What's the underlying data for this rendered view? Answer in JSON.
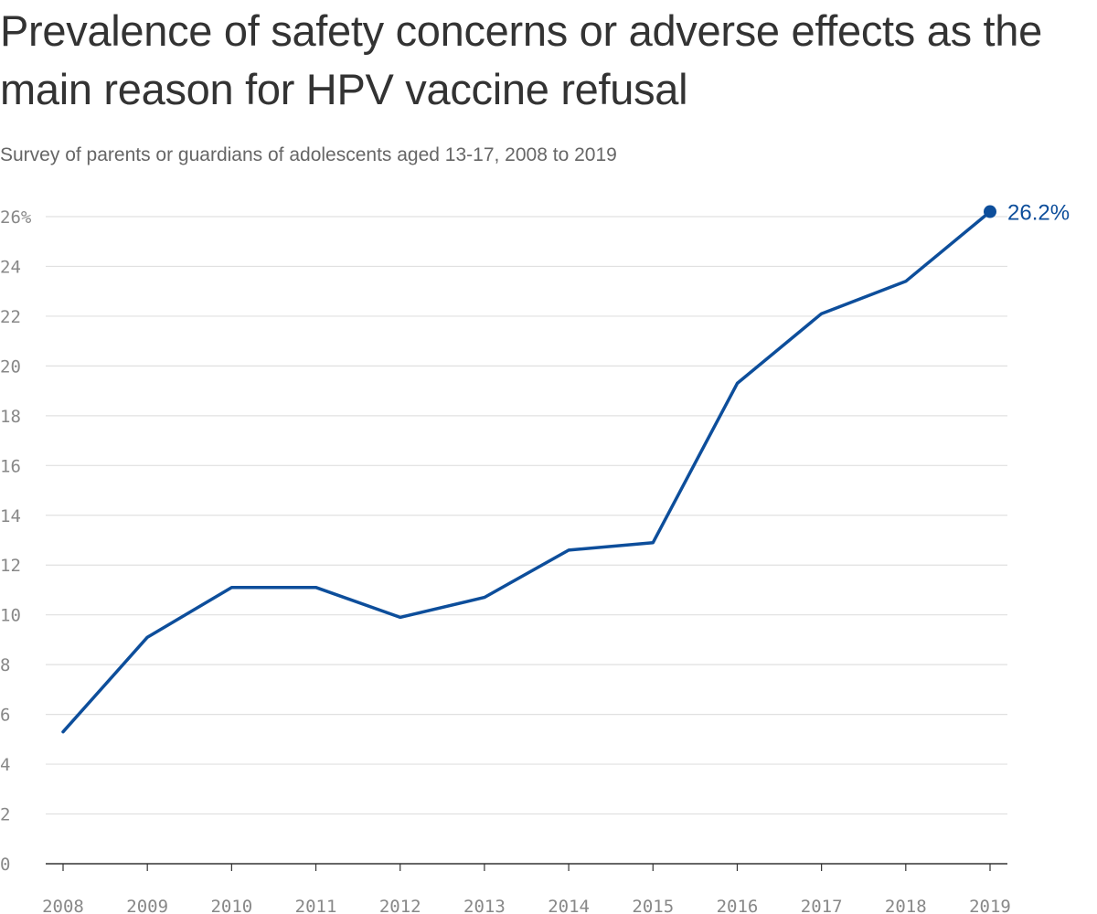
{
  "title": "Prevalence of safety concerns or adverse effects as the main reason for HPV vaccine refusal",
  "subtitle": "Survey of parents or guardians of adolescents aged 13-17, 2008 to 2019",
  "colors": {
    "line": "#0d4e9b",
    "grid": "#e0e0e0",
    "axis": "#333333",
    "tick_text": "#888888"
  },
  "chart_data": {
    "type": "line",
    "title": "Prevalence of safety concerns or adverse effects as the main reason for HPV vaccine refusal",
    "subtitle": "Survey of parents or guardians of adolescents aged 13-17, 2008 to 2019",
    "xlabel": "",
    "ylabel": "",
    "x": [
      "2008",
      "2009",
      "2010",
      "2011",
      "2012",
      "2013",
      "2014",
      "2015",
      "2016",
      "2017",
      "2018",
      "2019"
    ],
    "series": [
      {
        "values": [
          5.3,
          9.1,
          11.1,
          11.1,
          9.9,
          10.7,
          12.6,
          12.9,
          19.3,
          22.1,
          23.4,
          26.2
        ]
      }
    ],
    "ylim": [
      0,
      26
    ],
    "yticks": [
      0,
      2,
      4,
      6,
      8,
      10,
      12,
      14,
      16,
      18,
      20,
      22,
      24,
      26
    ],
    "ytick_labels": [
      "0",
      "2",
      "4",
      "6",
      "8",
      "10",
      "12",
      "14",
      "16",
      "18",
      "20",
      "22",
      "24",
      "26%"
    ],
    "grid": true,
    "legend": "none",
    "end_label": "26.2%"
  }
}
